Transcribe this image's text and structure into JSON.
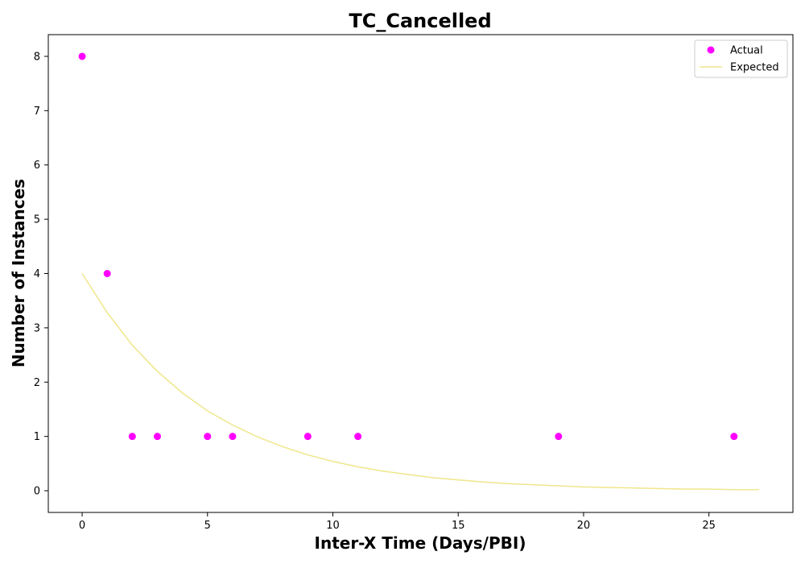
{
  "chart_data": {
    "type": "scatter",
    "title": "TC_Cancelled",
    "xlabel": "Inter-X Time (Days/PBI)",
    "ylabel": "Number of Instances",
    "xlim": [
      -1.35,
      28.35
    ],
    "ylim": [
      -0.4,
      8.4
    ],
    "xticks": [
      0,
      5,
      10,
      15,
      20,
      25
    ],
    "yticks": [
      0,
      1,
      2,
      3,
      4,
      5,
      6,
      7,
      8
    ],
    "grid": false,
    "legend_position": "top-right",
    "series": [
      {
        "name": "Actual",
        "kind": "scatter",
        "color": "#ff00ff",
        "x": [
          0,
          1,
          2,
          3,
          5,
          6,
          9,
          11,
          19,
          26
        ],
        "y": [
          8,
          4,
          1,
          1,
          1,
          1,
          1,
          1,
          1,
          1
        ]
      },
      {
        "name": "Expected",
        "kind": "line",
        "color": "#f0e68c",
        "x": [
          0,
          1,
          2,
          3,
          4,
          5,
          6,
          7,
          8,
          9,
          10,
          11,
          12,
          13,
          14,
          15,
          16,
          17,
          18,
          19,
          20,
          21,
          22,
          23,
          24,
          25,
          26,
          27
        ],
        "y": [
          4.0,
          3.28,
          2.68,
          2.2,
          1.8,
          1.47,
          1.21,
          0.99,
          0.81,
          0.66,
          0.54,
          0.44,
          0.36,
          0.3,
          0.24,
          0.2,
          0.16,
          0.13,
          0.11,
          0.09,
          0.07,
          0.06,
          0.05,
          0.04,
          0.03,
          0.03,
          0.02,
          0.02
        ]
      }
    ]
  }
}
